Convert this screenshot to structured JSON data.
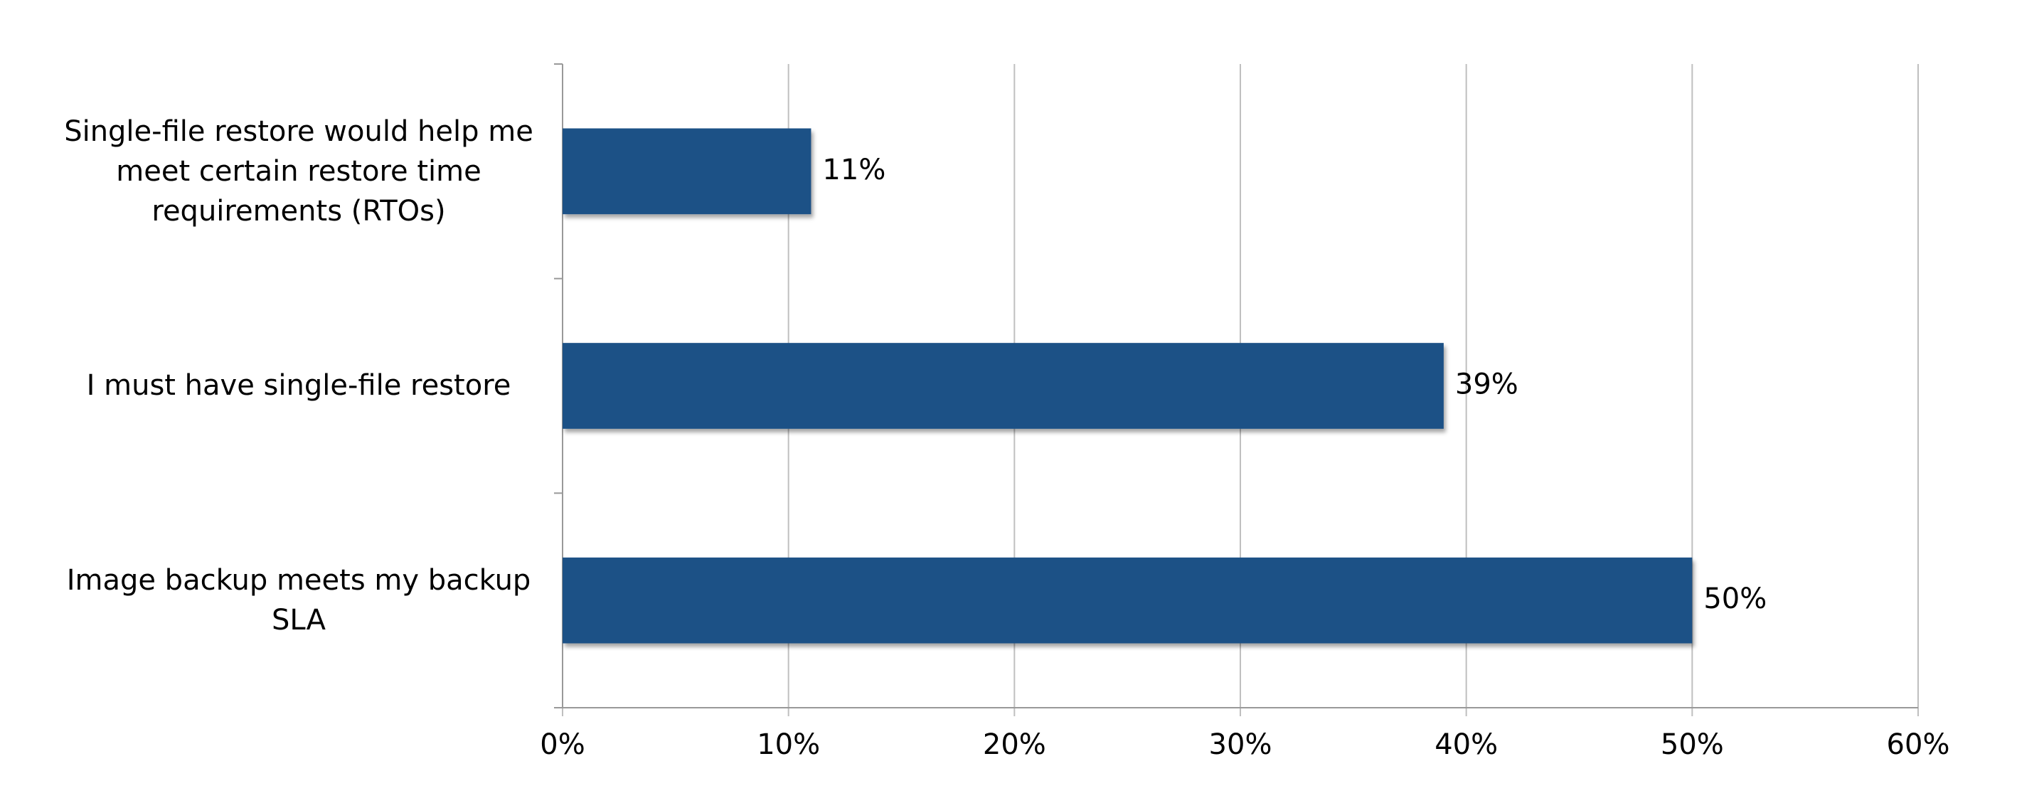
{
  "chart_data": {
    "type": "bar",
    "orientation": "horizontal",
    "categories": [
      "Single-file restore would help me meet certain restore time requirements (RTOs)",
      "I must have single-file restore",
      "Image backup meets my backup SLA"
    ],
    "values": [
      11,
      39,
      50
    ],
    "value_labels": [
      "11%",
      "39%",
      "50%"
    ],
    "color": "#1f5186",
    "xlim": [
      0,
      60
    ],
    "xticks": [
      {
        "value": 0,
        "label": "0%"
      },
      {
        "value": 10,
        "label": "10%"
      },
      {
        "value": 20,
        "label": "20%"
      },
      {
        "value": 30,
        "label": "30%"
      },
      {
        "value": 40,
        "label": "40%"
      },
      {
        "value": 50,
        "label": "50%"
      },
      {
        "value": 60,
        "label": "60%"
      }
    ],
    "grid": true
  }
}
